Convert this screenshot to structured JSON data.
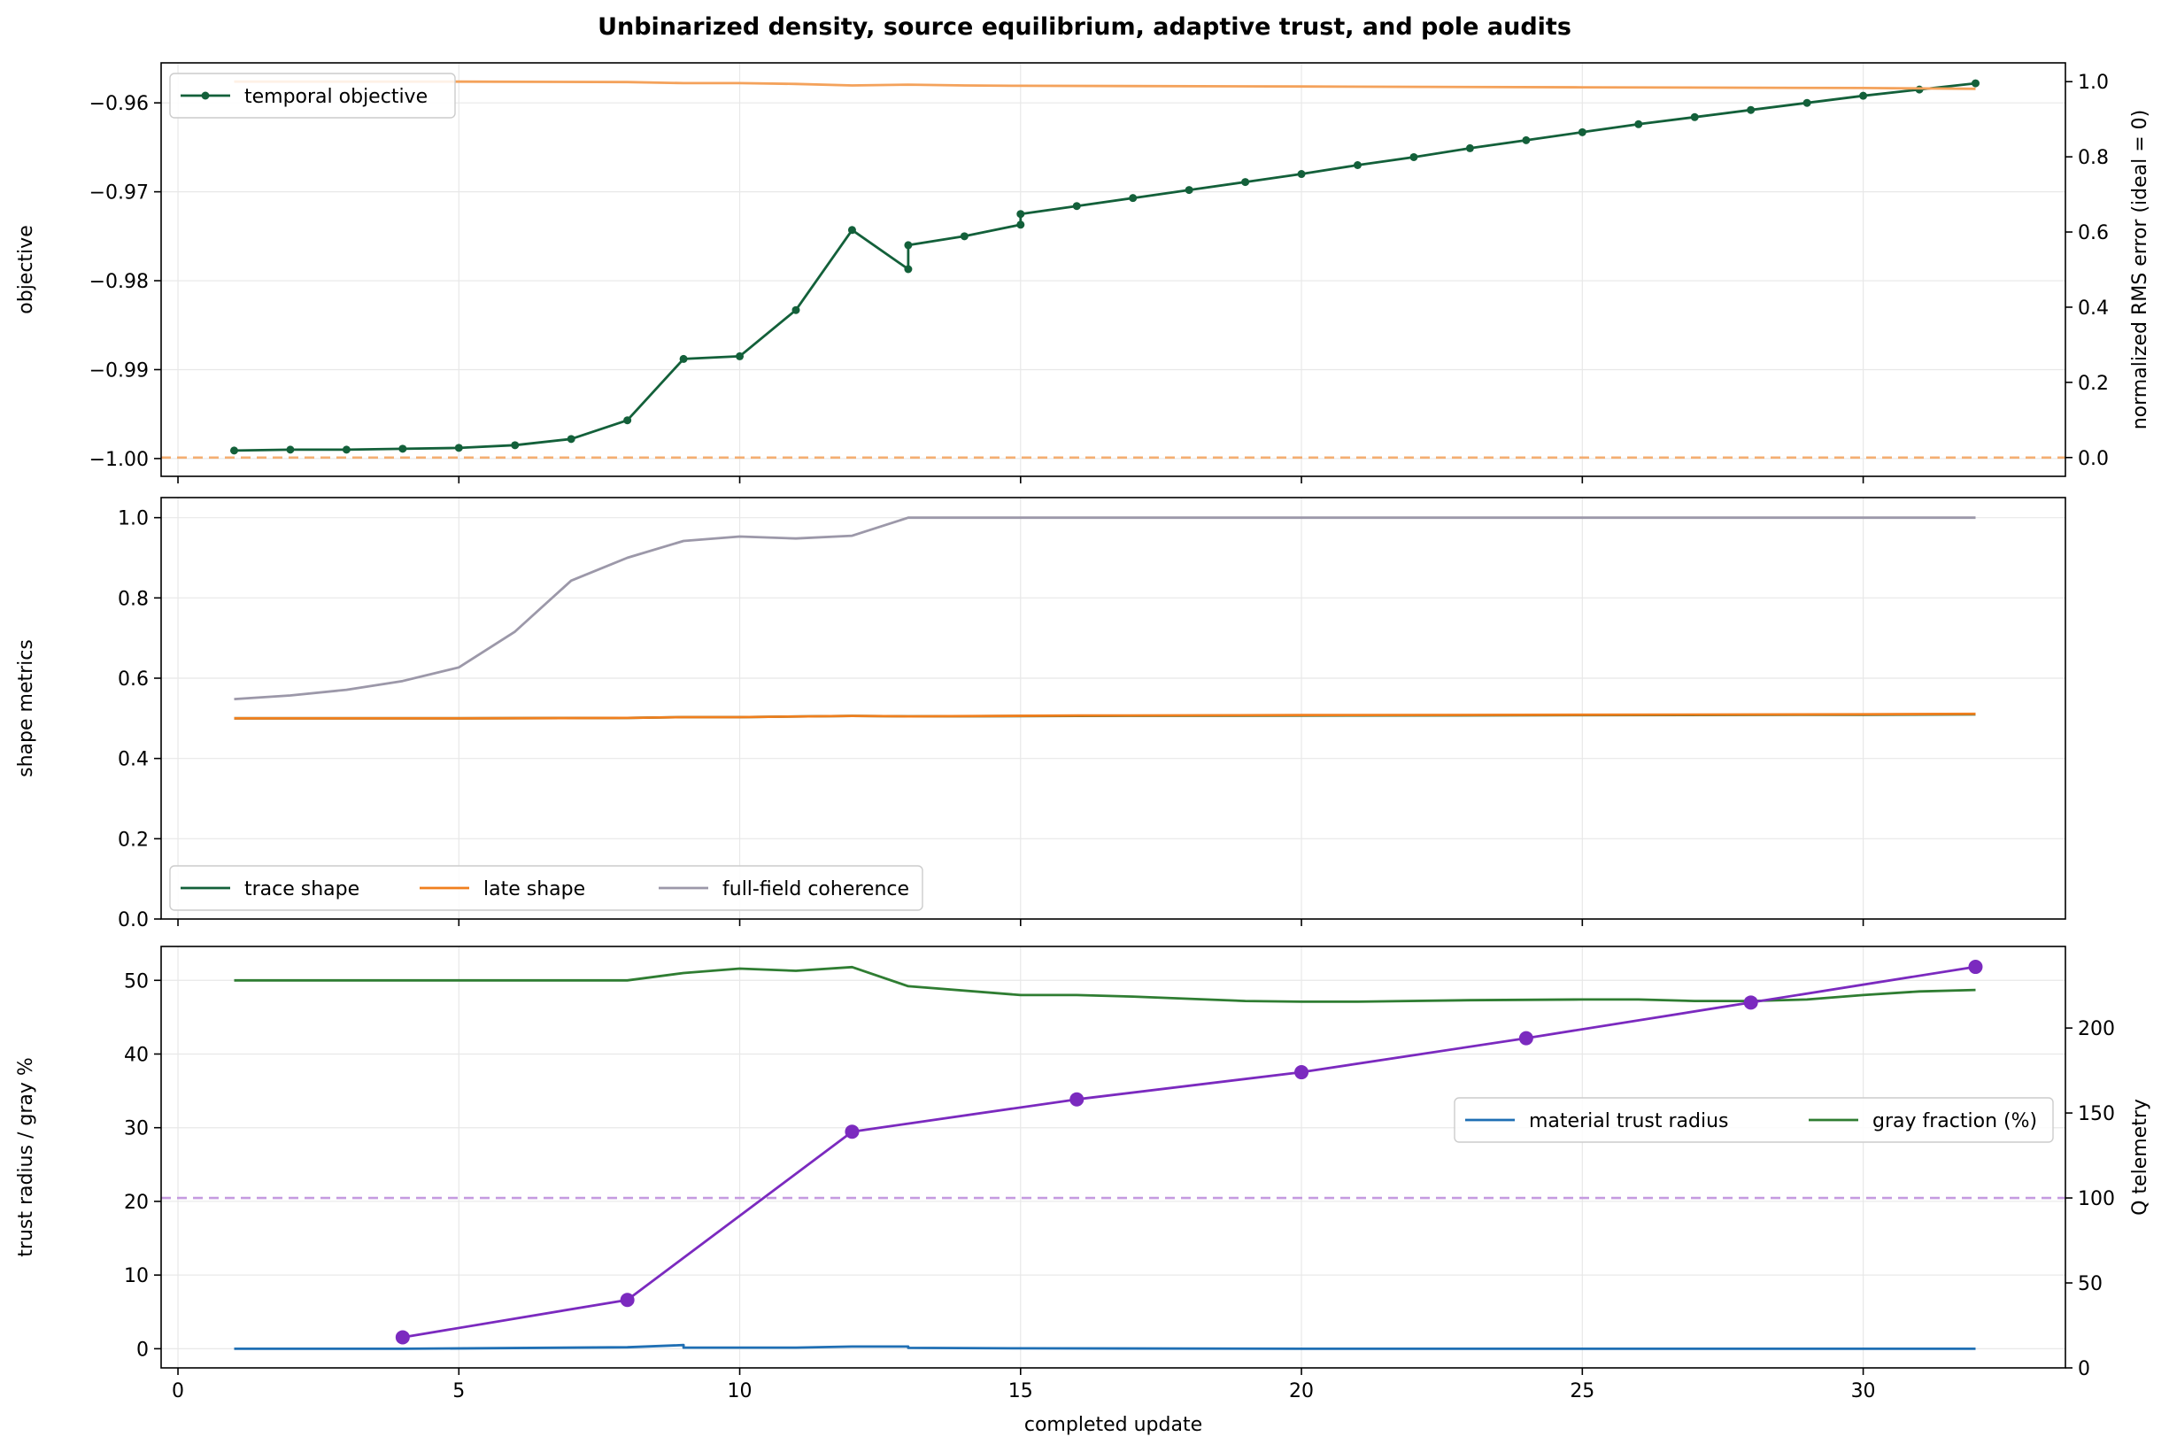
{
  "title": "Unbinarized density, source equilibrium, adaptive trust, and pole audits",
  "colors": {
    "objective": "#13603a",
    "rms": "#f4a25b",
    "trace": "#13603a",
    "late": "#f07f1e",
    "coherence": "#9c98a9",
    "trust": "#1f6fb4",
    "gray": "#2f7d32",
    "q": "#7b2abf",
    "q_ref": "#c59be0"
  },
  "chart_data": [
    {
      "type": "line",
      "xlim": [
        -0.3,
        33.6
      ],
      "xticks": [
        0,
        5,
        10,
        15,
        20,
        25,
        30
      ],
      "ylabel": "objective",
      "ylim": [
        -1.002,
        -0.9555
      ],
      "yticks": [
        -1.0,
        -0.99,
        -0.98,
        -0.97,
        -0.96
      ],
      "ytick_labels": [
        "−1.00",
        "−0.99",
        "−0.98",
        "−0.97",
        "−0.96"
      ],
      "y2label": "normalized RMS error (ideal = 0)",
      "y2lim": [
        -0.05,
        1.05
      ],
      "y2ticks": [
        0,
        0.2,
        0.4,
        0.6,
        0.8,
        1.0
      ],
      "y2tick_labels": [
        "0.0",
        "0.2",
        "0.4",
        "0.6",
        "0.8",
        "1.0"
      ],
      "grid": true,
      "legend": [
        "temporal objective"
      ],
      "legend_position": "upper-left",
      "series": [
        {
          "name": "temporal objective",
          "axis": "left",
          "markers": true,
          "x": [
            1,
            2,
            3,
            4,
            5,
            6,
            7,
            8,
            9,
            10,
            11,
            12,
            13,
            13,
            14,
            15,
            15,
            16,
            17,
            18,
            19,
            20,
            21,
            22,
            23,
            24,
            25,
            26,
            27,
            28,
            29,
            30,
            31,
            32
          ],
          "y": [
            -0.9991,
            -0.999,
            -0.999,
            -0.9989,
            -0.9988,
            -0.9985,
            -0.9978,
            -0.9957,
            -0.9888,
            -0.9885,
            -0.9833,
            -0.9743,
            -0.9787,
            -0.976,
            -0.975,
            -0.9737,
            -0.9725,
            -0.9716,
            -0.9707,
            -0.9698,
            -0.9689,
            -0.968,
            -0.967,
            -0.9661,
            -0.9651,
            -0.9642,
            -0.9633,
            -0.9624,
            -0.9616,
            -0.9608,
            -0.96,
            -0.9592,
            -0.9585,
            -0.9578
          ]
        },
        {
          "name": "normalized RMS error",
          "axis": "right",
          "x": [
            1,
            5,
            8,
            9,
            10,
            11,
            12,
            13,
            14,
            15,
            20,
            25,
            30,
            32
          ],
          "y": [
            1.0,
            1.0,
            0.999,
            0.996,
            0.996,
            0.994,
            0.99,
            0.992,
            0.99,
            0.989,
            0.987,
            0.985,
            0.983,
            0.981
          ]
        }
      ],
      "reference_lines": [
        {
          "axis": "right",
          "y": 0,
          "style": "dashed"
        }
      ]
    },
    {
      "type": "line",
      "xlim": [
        -0.3,
        33.6
      ],
      "xticks": [
        0,
        5,
        10,
        15,
        20,
        25,
        30
      ],
      "ylabel": "shape metrics",
      "ylim": [
        0.0,
        1.05
      ],
      "yticks": [
        0.0,
        0.2,
        0.4,
        0.6,
        0.8,
        1.0
      ],
      "ytick_labels": [
        "0.0",
        "0.2",
        "0.4",
        "0.6",
        "0.8",
        "1.0"
      ],
      "grid": true,
      "legend": [
        "trace shape",
        "late shape",
        "full-field coherence"
      ],
      "legend_position": "lower-left",
      "series": [
        {
          "name": "trace shape",
          "x": [
            1,
            5,
            8,
            9,
            10,
            12,
            13,
            16,
            20,
            25,
            30,
            32
          ],
          "y": [
            0.5,
            0.5,
            0.501,
            0.503,
            0.503,
            0.506,
            0.505,
            0.506,
            0.507,
            0.508,
            0.509,
            0.51
          ]
        },
        {
          "name": "late shape",
          "x": [
            1,
            5,
            8,
            9,
            10,
            12,
            13,
            16,
            20,
            25,
            30,
            32
          ],
          "y": [
            0.5,
            0.5,
            0.501,
            0.503,
            0.503,
            0.506,
            0.505,
            0.507,
            0.508,
            0.509,
            0.51,
            0.511
          ]
        },
        {
          "name": "full-field coherence",
          "x": [
            1,
            2,
            3,
            4,
            5,
            6,
            7,
            8,
            9,
            10,
            11,
            12,
            13,
            14,
            15,
            20,
            25,
            30,
            32
          ],
          "y": [
            0.548,
            0.557,
            0.571,
            0.593,
            0.627,
            0.716,
            0.843,
            0.9,
            0.942,
            0.953,
            0.948,
            0.955,
            1.0,
            1.0,
            1.0,
            1.0,
            1.0,
            1.0,
            1.0
          ]
        }
      ]
    },
    {
      "type": "line",
      "xlim": [
        -0.3,
        33.6
      ],
      "xticks": [
        0,
        5,
        10,
        15,
        20,
        25,
        30
      ],
      "xlabel": "completed update",
      "ylabel": "trust radius / gray %",
      "ylim": [
        -2.6,
        54.6
      ],
      "yticks": [
        0,
        10,
        20,
        30,
        40,
        50
      ],
      "ytick_labels": [
        "0",
        "10",
        "20",
        "30",
        "40",
        "50"
      ],
      "y2label": "Q telemetry",
      "y2lim": [
        0,
        248
      ],
      "y2ticks": [
        0,
        50,
        100,
        150,
        200
      ],
      "y2tick_labels": [
        "0",
        "50",
        "100",
        "150",
        "200"
      ],
      "grid": true,
      "legend": [
        "material trust radius",
        "gray fraction (%)"
      ],
      "legend_position": "center-right",
      "series": [
        {
          "name": "material trust radius",
          "axis": "left",
          "x": [
            1,
            4,
            8,
            9,
            9,
            10,
            11,
            12,
            13,
            13,
            15,
            20,
            25,
            32
          ],
          "y": [
            0.0,
            0.0,
            0.2,
            0.5,
            0.15,
            0.15,
            0.15,
            0.3,
            0.3,
            0.12,
            0.05,
            0.0,
            0.0,
            0.0
          ]
        },
        {
          "name": "gray fraction (%)",
          "axis": "left",
          "x": [
            1,
            8,
            9,
            10,
            11,
            12,
            13,
            15,
            16,
            17,
            19,
            20,
            21,
            23,
            25,
            26,
            27,
            28,
            29,
            30,
            31,
            32
          ],
          "y": [
            50.0,
            50.0,
            51.0,
            51.6,
            51.3,
            51.8,
            49.2,
            48.0,
            48.0,
            47.8,
            47.2,
            47.1,
            47.1,
            47.3,
            47.4,
            47.4,
            47.2,
            47.2,
            47.4,
            48.0,
            48.5,
            48.7
          ]
        },
        {
          "name": "Q telemetry",
          "axis": "right",
          "markers": true,
          "x": [
            4,
            8,
            12,
            16,
            20,
            24,
            28,
            32
          ],
          "y": [
            18,
            40,
            139,
            158,
            174,
            194,
            215,
            236
          ]
        }
      ],
      "reference_lines": [
        {
          "axis": "right",
          "y": 100,
          "style": "dashed"
        }
      ]
    }
  ]
}
